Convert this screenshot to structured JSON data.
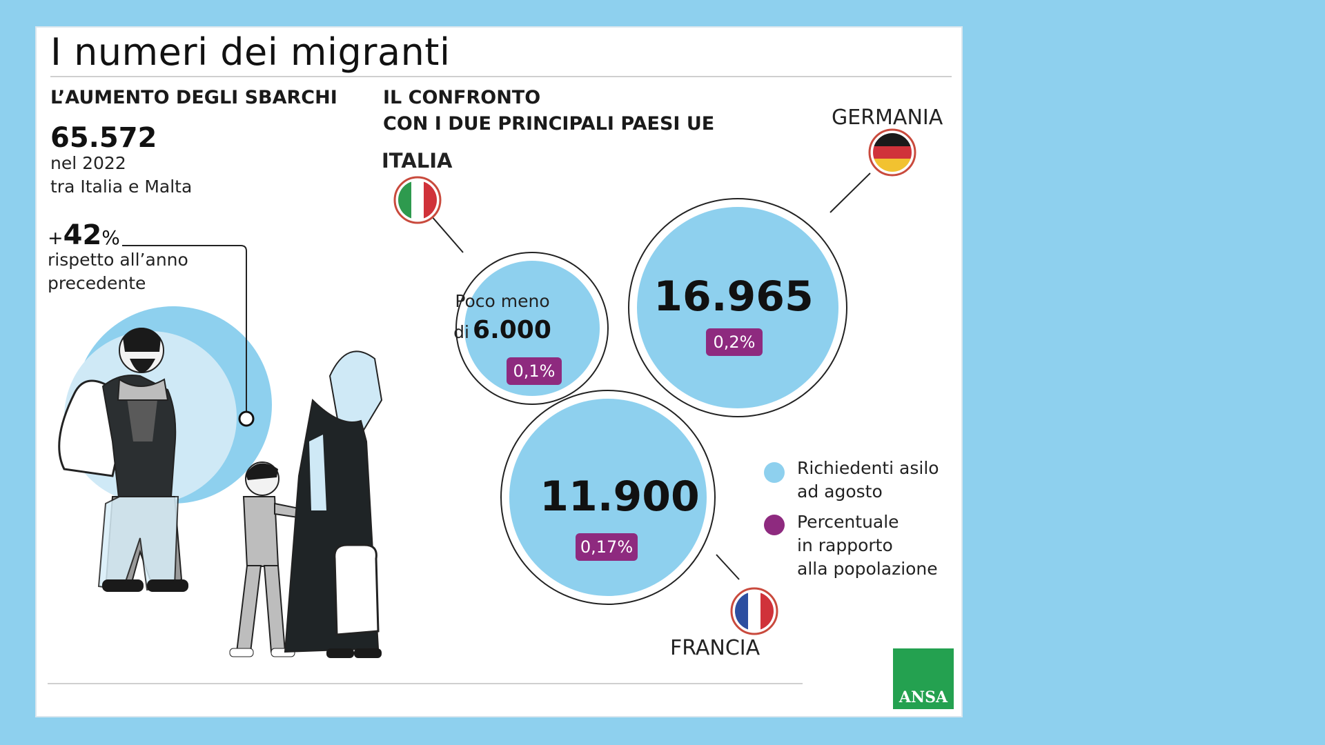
{
  "title": "I numeri dei migranti",
  "sbarchi": {
    "heading": "L’AUMENTO DEGLI SBARCHI",
    "total": "65.572",
    "year_line": "nel 2022",
    "area_line": "tra Italia e Malta",
    "change_plus": "+",
    "change_value": "42",
    "change_symbol": "%",
    "change_line1": "rispetto all’anno",
    "change_line2": "precedente"
  },
  "confronto": {
    "heading_line1": "IL CONFRONTO",
    "heading_line2": "CON I DUE PRINCIPALI PAESI UE"
  },
  "countries": {
    "italia": {
      "label": "ITALIA",
      "prefix_line": "Poco meno",
      "di": "di",
      "value": "6.000",
      "percent": "0,1%",
      "flag_icon": "italy-flag-icon"
    },
    "germania": {
      "label": "GERMANIA",
      "value": "16.965",
      "percent": "0,2%",
      "flag_icon": "germany-flag-icon"
    },
    "francia": {
      "label": "FRANCIA",
      "value": "11.900",
      "percent": "0,17%",
      "flag_icon": "france-flag-icon"
    }
  },
  "legend": {
    "asylum_line1": "Richiedenti asilo",
    "asylum_line2": "ad agosto",
    "percent_line1": "Percentuale",
    "percent_line2": "in rapporto",
    "percent_line3": "alla popolazione"
  },
  "logo": "ANSA",
  "colors": {
    "background": "#8ed0ee",
    "bubble": "#8ed0ee",
    "badge": "#8e2a7f",
    "logo": "#24a150"
  }
}
